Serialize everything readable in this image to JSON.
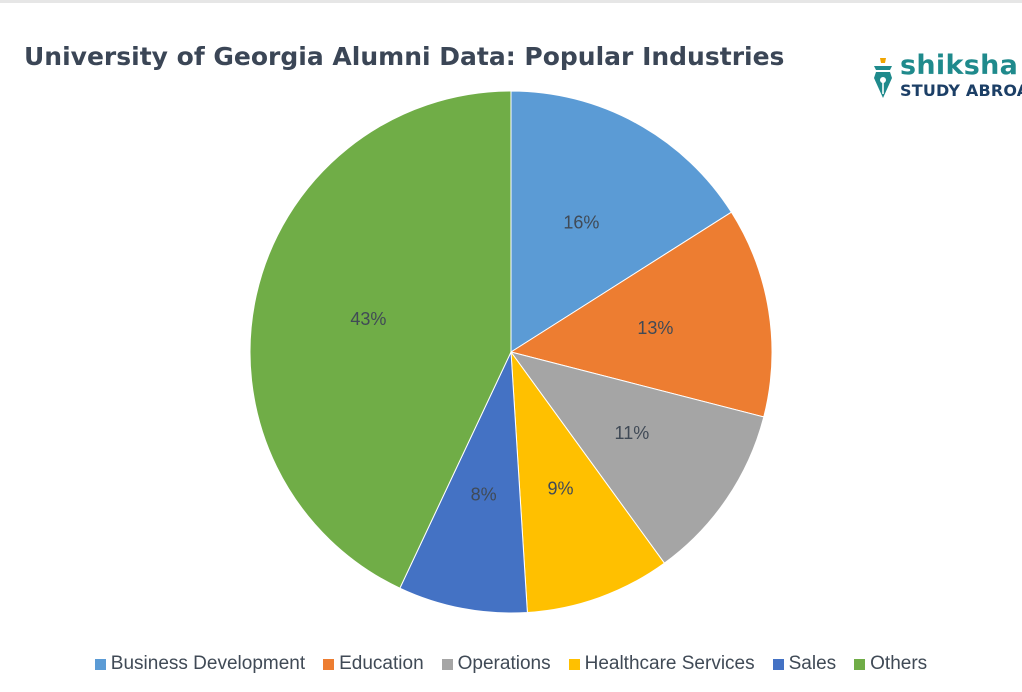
{
  "chart_data": {
    "type": "pie",
    "title": "University of Georgia Alumni Data: Popular Industries",
    "categories": [
      "Business Development",
      "Education",
      "Operations",
      "Healthcare Services",
      "Sales",
      "Others"
    ],
    "values": [
      16,
      13,
      11,
      9,
      8,
      43
    ],
    "value_labels": [
      "16%",
      "13%",
      "11%",
      "9%",
      "8%",
      "43%"
    ],
    "colors": [
      "#5b9bd5",
      "#ed7d31",
      "#a5a5a5",
      "#ffc000",
      "#4472c4",
      "#70ad47"
    ],
    "legend_position": "bottom",
    "start_angle": "12 o'clock",
    "direction": "clockwise"
  },
  "logo": {
    "line1": "shiksha",
    "line2": "STUDY ABROAD"
  },
  "logo_colors": {
    "primary": "#1f8a8c",
    "secondary": "#1c3f66",
    "accent": "#f0a500"
  }
}
